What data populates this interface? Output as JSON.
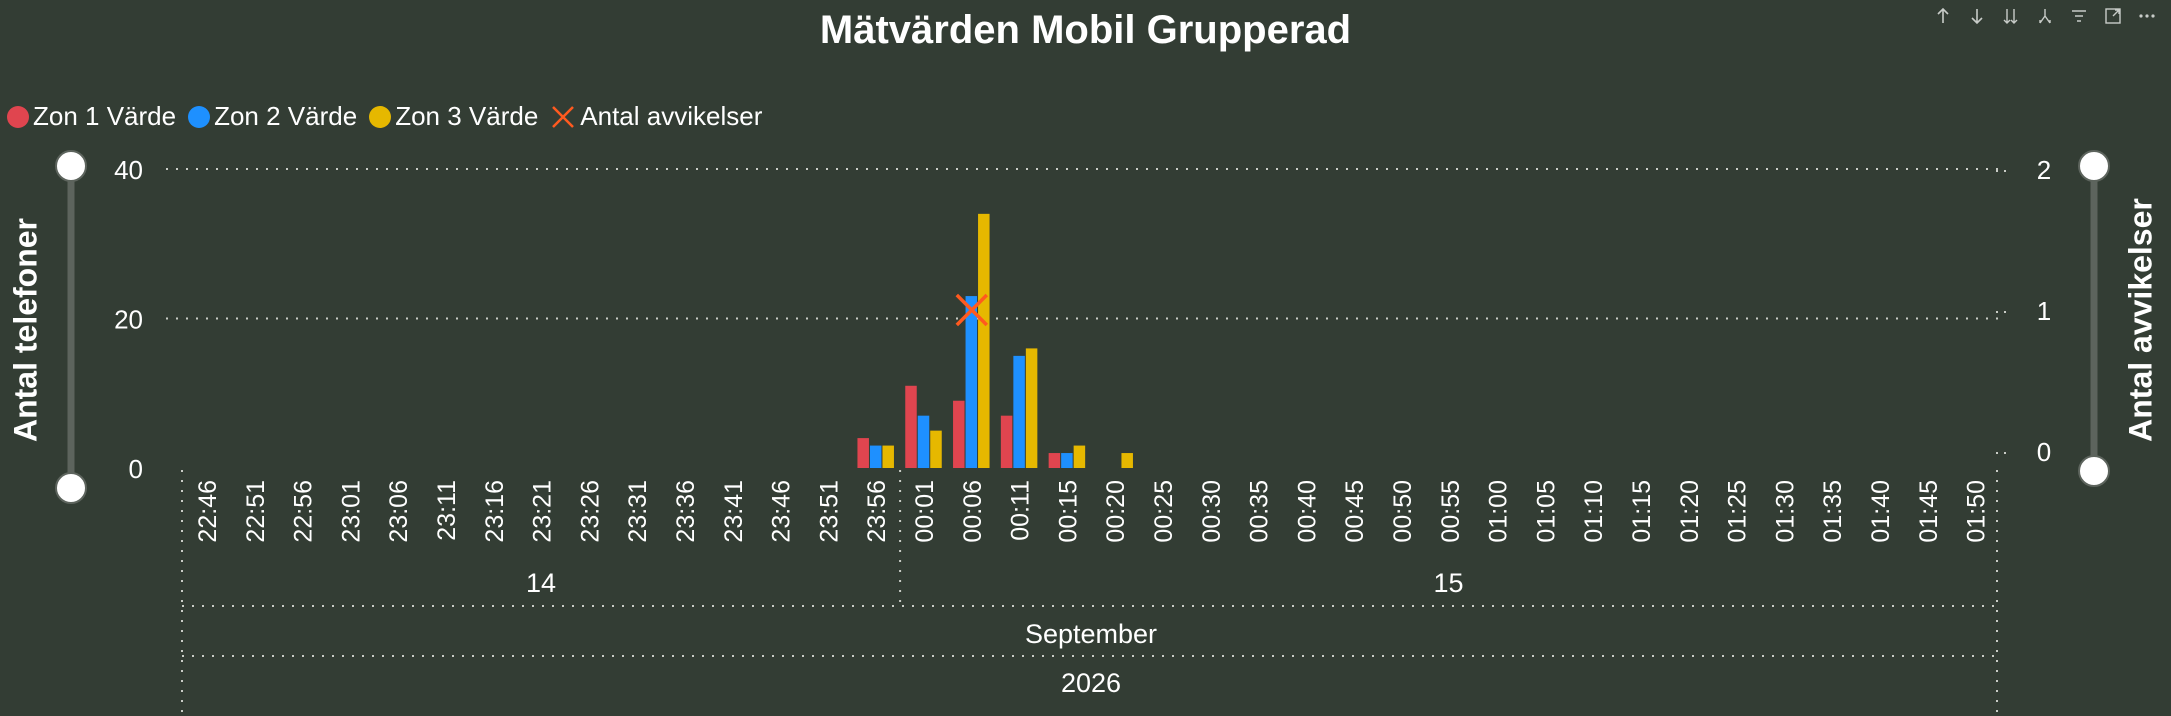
{
  "title": "Mätvärden Mobil Grupperad",
  "toolbar": {
    "icons": [
      "arrow-up-icon",
      "arrow-down-icon",
      "double-arrow-down-icon",
      "fork-icon",
      "filter-icon",
      "focus-mode-icon",
      "more-options-icon"
    ]
  },
  "colors": {
    "background": "#333d34",
    "zon1": "#e0454f",
    "zon2": "#1e90ff",
    "zon3": "#e6b800",
    "avvikelser": "#ff5a1f",
    "slider": "#ffffff"
  },
  "chart_data": {
    "type": "bar",
    "title": "Mätvärden Mobil Grupperad",
    "legend": [
      {
        "label": "Zon 1 Värde",
        "color": "#e0454f",
        "shape": "circle"
      },
      {
        "label": "Zon 2 Värde",
        "color": "#1e90ff",
        "shape": "circle"
      },
      {
        "label": "Zon 3 Värde",
        "color": "#e6b800",
        "shape": "circle"
      },
      {
        "label": "Antal avvikelser",
        "color": "#ff5a1f",
        "shape": "x"
      }
    ],
    "legend_position": "top-left",
    "grid": true,
    "x_ticks": [
      "22:46",
      "22:51",
      "22:56",
      "23:01",
      "23:06",
      "23:11",
      "23:16",
      "23:21",
      "23:26",
      "23:31",
      "23:36",
      "23:41",
      "23:46",
      "23:51",
      "23:56",
      "00:01",
      "00:06",
      "00:11",
      "00:15",
      "00:20",
      "00:25",
      "00:30",
      "00:35",
      "00:40",
      "00:45",
      "00:50",
      "00:55",
      "01:00",
      "01:05",
      "01:10",
      "01:15",
      "01:20",
      "01:25",
      "01:30",
      "01:35",
      "01:40",
      "01:45",
      "01:50"
    ],
    "x_level2": [
      {
        "label": "14",
        "start": 0,
        "end": 15
      },
      {
        "label": "15",
        "start": 15,
        "end": 38
      }
    ],
    "x_level3": "September",
    "x_level4": "2026",
    "y_left": {
      "label": "Antal telefoner",
      "ticks": [
        "0",
        "20",
        "40"
      ],
      "range": [
        0,
        40
      ]
    },
    "y_right": {
      "label": "Antal avvikelser",
      "ticks": [
        "0",
        "1",
        "2"
      ],
      "range": [
        0,
        2
      ]
    },
    "series": [
      {
        "name": "Zon 1 Värde",
        "color": "#e0454f",
        "points": [
          {
            "x": "23:56",
            "y": 4
          },
          {
            "x": "00:01",
            "y": 11
          },
          {
            "x": "00:06",
            "y": 9
          },
          {
            "x": "00:11",
            "y": 7
          },
          {
            "x": "00:15",
            "y": 2
          }
        ]
      },
      {
        "name": "Zon 2 Värde",
        "color": "#1e90ff",
        "points": [
          {
            "x": "23:56",
            "y": 3
          },
          {
            "x": "00:01",
            "y": 7
          },
          {
            "x": "00:06",
            "y": 23
          },
          {
            "x": "00:11",
            "y": 15
          },
          {
            "x": "00:15",
            "y": 2
          }
        ]
      },
      {
        "name": "Zon 3 Värde",
        "color": "#e6b800",
        "points": [
          {
            "x": "23:56",
            "y": 3
          },
          {
            "x": "00:01",
            "y": 5
          },
          {
            "x": "00:06",
            "y": 34
          },
          {
            "x": "00:11",
            "y": 16
          },
          {
            "x": "00:15",
            "y": 3
          },
          {
            "x": "00:20",
            "y": 2
          }
        ]
      }
    ],
    "markers": [
      {
        "name": "Antal avvikelser",
        "x": "00:06",
        "y": 1,
        "axis": "right"
      }
    ]
  }
}
